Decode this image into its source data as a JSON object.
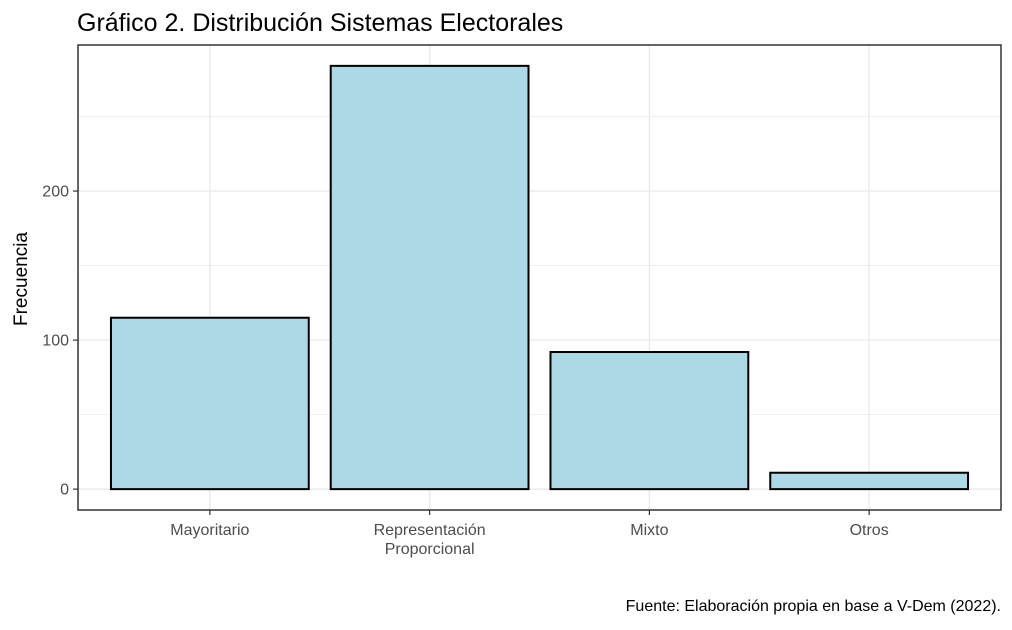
{
  "chart_data": {
    "type": "bar",
    "title": "Gráfico 2. Distribución Sistemas Electorales",
    "xlabel": "",
    "ylabel": "Frecuencia",
    "categories": [
      [
        "Mayoritario"
      ],
      [
        "Representación",
        "Proporcional"
      ],
      [
        "Mixto"
      ],
      [
        "Otros"
      ]
    ],
    "values": [
      115,
      284,
      92,
      11
    ],
    "ylim": [
      -14,
      298
    ],
    "yticks": [
      0,
      100,
      200
    ],
    "grid": true,
    "caption": "Fuente: Elaboración propia en base a V-Dem (2022).",
    "colors": {
      "bar_fill": "#add8e6",
      "bar_stroke": "#000000",
      "grid": "#ebebeb",
      "panel_border": "#333333",
      "tick_text": "#4d4d4d"
    }
  }
}
